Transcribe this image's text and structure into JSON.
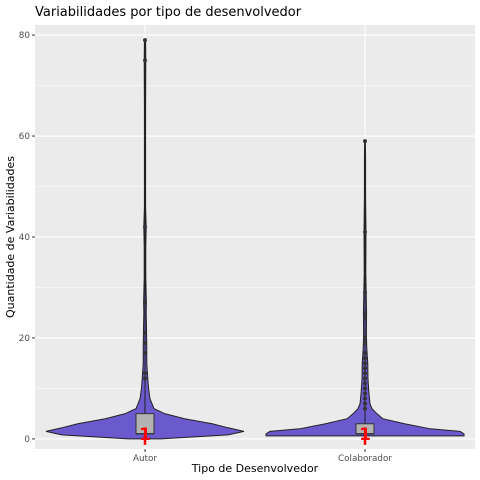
{
  "chart_data": {
    "type": "violin",
    "title": "Variabilidades por tipo de desenvolvedor",
    "xlabel": "Tipo de Desenvolvedor",
    "ylabel": "Quantidade de Variabilidades",
    "categories": [
      "Autor",
      "Colaborador"
    ],
    "ylim": [
      -2,
      82
    ],
    "yticks": [
      0,
      20,
      40,
      60,
      80
    ],
    "grid": true,
    "colors": {
      "panel": "#ebebeb",
      "grid_major": "#ffffff",
      "violin_fill": "#6a5acd",
      "violin_stroke": "#222222",
      "box_fill": "#b3b3b3",
      "median_label": "#ff0000",
      "points": "#333333"
    },
    "series": [
      {
        "category": "Autor",
        "box": {
          "q1": 1,
          "median": 1,
          "q3": 5,
          "whisker_low": 0
        },
        "median_label": "1",
        "outliers": [
          12,
          13,
          17,
          19,
          21,
          27,
          42,
          75,
          79
        ],
        "density": [
          [
            0,
            0.08
          ],
          [
            0.8,
            0.42
          ],
          [
            1.5,
            0.5
          ],
          [
            2.2,
            0.42
          ],
          [
            3,
            0.34
          ],
          [
            4,
            0.2
          ],
          [
            5,
            0.1
          ],
          [
            6,
            0.045
          ],
          [
            8,
            0.025
          ],
          [
            10,
            0.018
          ],
          [
            12,
            0.014
          ],
          [
            15,
            0.009
          ],
          [
            18,
            0.009
          ],
          [
            21,
            0.008
          ],
          [
            25,
            0.006
          ],
          [
            27,
            0.007
          ],
          [
            32,
            0.004
          ],
          [
            38,
            0.004
          ],
          [
            42,
            0.006
          ],
          [
            46,
            0.003
          ],
          [
            55,
            0.003
          ],
          [
            65,
            0.003
          ],
          [
            75,
            0.004
          ],
          [
            79,
            0.003
          ]
        ]
      },
      {
        "category": "Colaborador",
        "box": {
          "q1": 1,
          "median": 1,
          "q3": 3,
          "whisker_low": 0
        },
        "median_label": "1",
        "outliers": [
          6,
          7,
          8,
          9,
          10,
          11,
          12,
          13,
          14,
          15,
          16,
          17,
          19,
          20,
          24,
          25,
          29,
          41,
          59
        ],
        "density": [
          [
            0.6,
            0.5
          ],
          [
            1,
            0.5
          ],
          [
            1.5,
            0.48
          ],
          [
            2,
            0.33
          ],
          [
            3,
            0.2
          ],
          [
            4,
            0.09
          ],
          [
            5,
            0.06
          ],
          [
            6,
            0.035
          ],
          [
            7,
            0.025
          ],
          [
            9,
            0.02
          ],
          [
            12,
            0.015
          ],
          [
            15,
            0.014
          ],
          [
            18,
            0.009
          ],
          [
            21,
            0.007
          ],
          [
            25,
            0.008
          ],
          [
            29,
            0.006
          ],
          [
            33,
            0.004
          ],
          [
            41,
            0.005
          ],
          [
            48,
            0.003
          ],
          [
            55,
            0.003
          ],
          [
            59,
            0.002
          ]
        ]
      }
    ]
  }
}
